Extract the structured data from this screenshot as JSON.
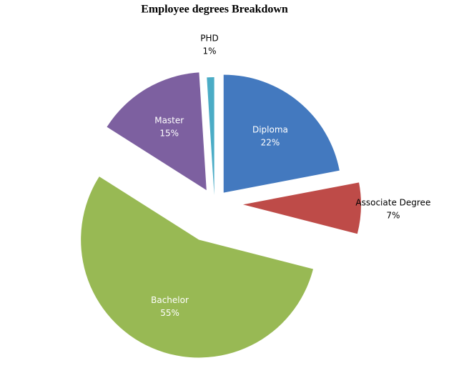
{
  "chart_data": {
    "type": "pie",
    "title": "Employee degrees Breakdown",
    "categories": [
      "Diploma",
      "Associate Degree",
      "Bachelor",
      "Master",
      "PHD"
    ],
    "values": [
      22,
      7,
      55,
      15,
      1
    ],
    "value_labels": [
      "22%",
      "7%",
      "55%",
      "15%",
      "1%"
    ],
    "colors": [
      "#4379bf",
      "#be4b48",
      "#98b954",
      "#7d60a0",
      "#4bacc6"
    ]
  }
}
